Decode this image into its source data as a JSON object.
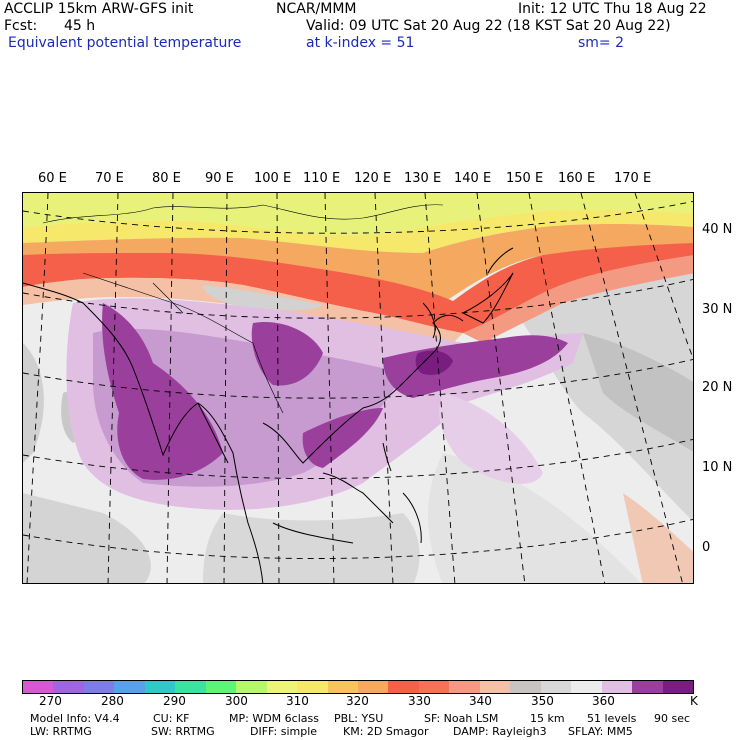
{
  "header": {
    "line1_left": "ACCLIP 15km ARW-GFS init",
    "line1_center": "NCAR/MMM",
    "line1_right": "Init: 12 UTC Thu 18 Aug 22",
    "fcst_label": "Fcst:",
    "fcst_value": "45 h",
    "valid": "Valid: 09 UTC Sat 20 Aug 22 (18 KST Sat 20 Aug 22)",
    "variable": "Equivalent potential temperature",
    "level": "at k-index =  51",
    "smoothing": "sm= 2"
  },
  "map": {
    "longitude_labels": [
      "60 E",
      "70 E",
      "80 E",
      "90 E",
      "100 E",
      "110 E",
      "120 E",
      "130 E",
      "140 E",
      "150 E",
      "160 E",
      "170 E"
    ],
    "latitude_labels": [
      "40 N",
      "30 N",
      "20 N",
      "10 N",
      "0"
    ],
    "colors": {
      "ocean_base": "#ededed",
      "light_gray": "#dcdcdc",
      "mid_gray": "#c4c4c4",
      "yellow_green": "#eef47a",
      "yellow": "#f6e86a",
      "orange": "#f4a860",
      "red": "#f4604a",
      "salmon": "#f49a82",
      "light_lilac": "#e0bfe3",
      "lilac": "#c79bd0",
      "purple": "#9b3f9c",
      "dark_purple": "#7a1d80"
    }
  },
  "colorbar": {
    "unit": "K",
    "labels": [
      "270",
      "280",
      "290",
      "300",
      "310",
      "320",
      "330",
      "340",
      "350",
      "360"
    ],
    "colors": [
      "#d55ad2",
      "#a066e0",
      "#7d7de6",
      "#5aa0e8",
      "#31c8c8",
      "#36e6a0",
      "#5ef47a",
      "#b6f76e",
      "#eef47a",
      "#f6e86a",
      "#f6c45e",
      "#f4a860",
      "#f4604a",
      "#f47258",
      "#f49a82",
      "#f4c0a6",
      "#c8c4c4",
      "#d8d8d8",
      "#ececec",
      "#e0bfe3",
      "#9b3f9c",
      "#7a1d80"
    ]
  },
  "model_info": {
    "line1": [
      "Model Info: V4.4",
      "CU: KF",
      "MP: WDM 6class",
      "PBL: YSU",
      "SF: Noah LSM",
      "15 km",
      "51 levels",
      "90 sec"
    ],
    "line2": [
      "LW: RRTMG",
      "SW: RRTMG",
      "DIFF: simple",
      "KM: 2D Smagor",
      "DAMP: Rayleigh3",
      "SFLAY: MM5"
    ]
  }
}
